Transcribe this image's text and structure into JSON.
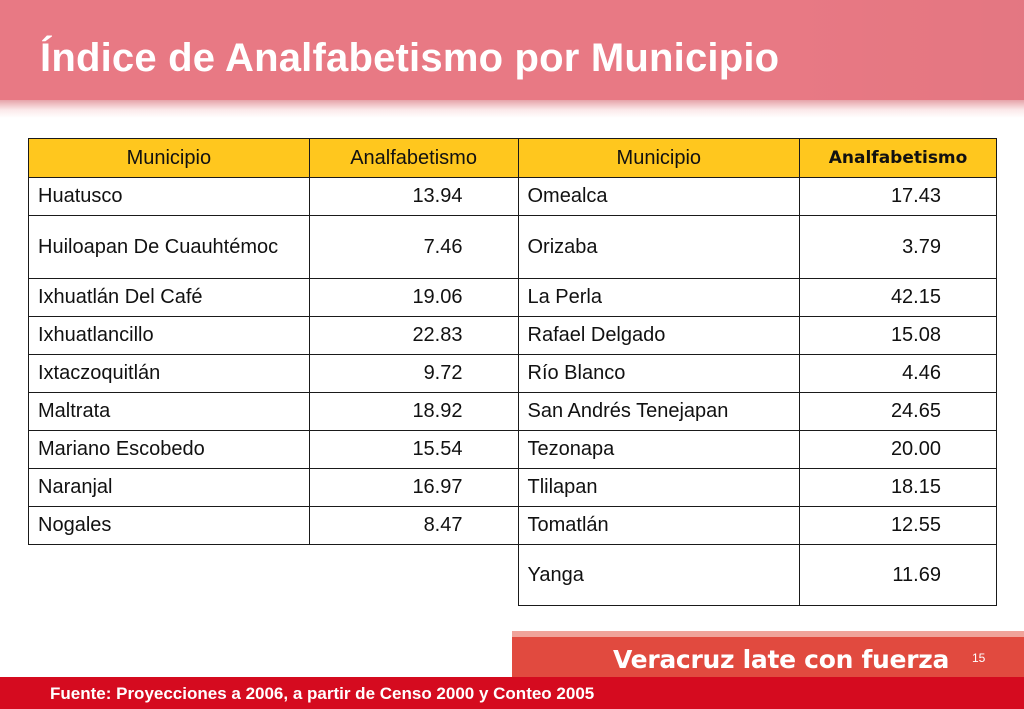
{
  "slide": {
    "title": "Índice de Analfabetismo por Municipio",
    "page_number": "15"
  },
  "table": {
    "headers": [
      "Municipio",
      "Analfabetismo",
      "Municipio",
      "Analfabetismo"
    ],
    "left": [
      {
        "municipio": "Huatusco",
        "valor": "13.94"
      },
      {
        "municipio": "Huiloapan De Cuauhtémoc",
        "valor": "7.46"
      },
      {
        "municipio": "Ixhuatlán Del Café",
        "valor": "19.06"
      },
      {
        "municipio": "Ixhuatlancillo",
        "valor": "22.83"
      },
      {
        "municipio": "Ixtaczoquitlán",
        "valor": "9.72"
      },
      {
        "municipio": "Maltrata",
        "valor": "18.92"
      },
      {
        "municipio": "Mariano Escobedo",
        "valor": "15.54"
      },
      {
        "municipio": "Naranjal",
        "valor": "16.97"
      },
      {
        "municipio": "Nogales",
        "valor": "8.47"
      }
    ],
    "right": [
      {
        "municipio": "Omealca",
        "valor": "17.43"
      },
      {
        "municipio": "Orizaba",
        "valor": "3.79"
      },
      {
        "municipio": "La Perla",
        "valor": "42.15"
      },
      {
        "municipio": "Rafael Delgado",
        "valor": "15.08"
      },
      {
        "municipio": "Río Blanco",
        "valor": "4.46"
      },
      {
        "municipio": "San Andrés Tenejapan",
        "valor": "24.65"
      },
      {
        "municipio": "Tezonapa",
        "valor": "20.00"
      },
      {
        "municipio": "Tlilapan",
        "valor": "18.15"
      },
      {
        "municipio": "Tomatlán",
        "valor": "12.55"
      },
      {
        "municipio": "Yanga",
        "valor": "11.69"
      }
    ]
  },
  "footer": {
    "brand": "Veracruz late con fuerza",
    "source": "Fuente: Proyecciones a 2006, a partir de Censo 2000 y Conteo 2005"
  },
  "colors": {
    "header_red": "#d50b1f",
    "table_header_yellow": "#ffc71e",
    "footer_orange_red": "#e14a3f"
  }
}
